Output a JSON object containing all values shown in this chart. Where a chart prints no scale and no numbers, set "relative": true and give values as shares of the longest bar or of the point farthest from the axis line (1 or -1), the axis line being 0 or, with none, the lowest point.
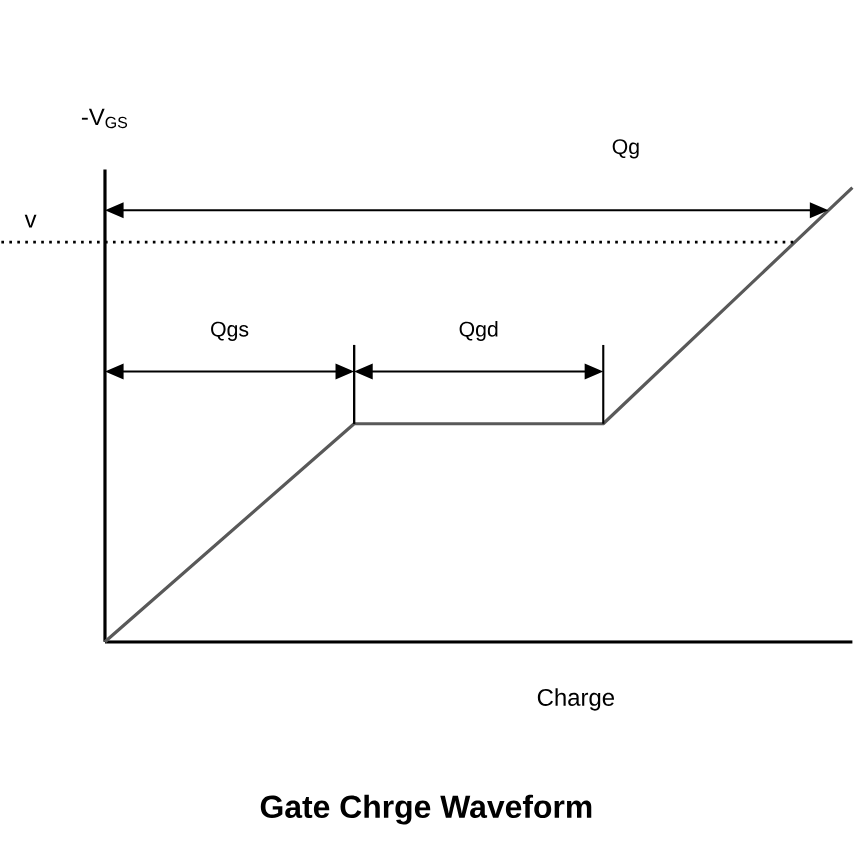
{
  "chart_data": {
    "type": "line",
    "title": "Gate Chrge Waveform",
    "xlabel": "Charge",
    "ylabel": "-V$_{GS}$",
    "relative": true,
    "categories": [
      null,
      null,
      null,
      null
    ],
    "series": [
      {
        "color": "#595959",
        "values": [
          0,
          0.48,
          0.48,
          1.0
        ]
      }
    ],
    "ref_lines": [
      {
        "axis": "y",
        "value": 0.88,
        "label": "v",
        "color": "#000000",
        "line_style": "dotted"
      }
    ],
    "annotations": [
      "Qg",
      "Qgs",
      "Qgd"
    ]
  }
}
